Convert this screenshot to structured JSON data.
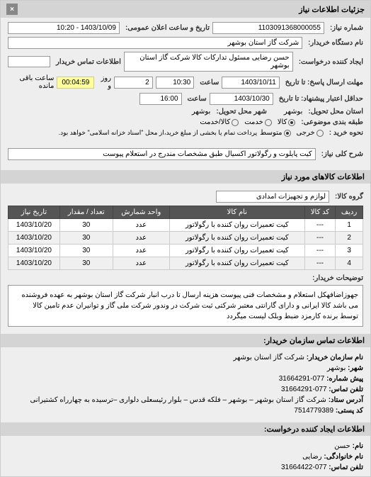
{
  "header": {
    "title": "جزئیات اطلاعات نیاز",
    "close": "×"
  },
  "request": {
    "number_label": "شماره نیاز:",
    "number": "1103091368000055",
    "datetime_label": "تاریخ و ساعت اعلان عمومی:",
    "datetime": "1403/10/09 - 10:20",
    "buyer_name_label": "نام دستگاه خریدار:",
    "buyer_name": "شرکت گاز استان بوشهر",
    "requester_label": "ایجاد کننده درخواست:",
    "requester": "حسن رضایی مسئول تدارکات کالا شرکت گاز استان بوشهر",
    "contact_label": "اطلاعات تماس خریدار",
    "deadline_send_label": "مهلت ارسال پاسخ: تا تاریخ",
    "deadline_send_date": "1403/10/11",
    "deadline_send_time_label": "ساعت",
    "deadline_send_time": "10:30",
    "remaining_label": "",
    "remaining_days": "2",
    "remaining_days_label": "روز و",
    "remaining_time": "00:04:59",
    "remaining_suffix": "ساعت باقی مانده",
    "validity_label": "حداقل اعتبار پیشنهاد: تا تاریخ",
    "validity_date": "1403/10/30",
    "validity_time_label": "ساعت",
    "validity_time": "16:00",
    "delivery_province_label": "استان محل تحویل:",
    "delivery_province": "بوشهر",
    "delivery_city_label": "شهر محل تحویل:",
    "delivery_city": "بوشهر",
    "pricing_label": "طبقه بندی موضوعی:",
    "pricing_options": [
      "کالا",
      "خدمت",
      "کالا/خدمت"
    ],
    "pricing_selected": 0,
    "purchase_type_label": "نحوه خرید :",
    "purchase_options": [
      "خرجی",
      "متوسط"
    ],
    "purchase_selected": 1,
    "purchase_note": "پرداخت تمام یا بخشی از مبلغ خرید،از محل \"اسناد خزانه اسلامی\" خواهد بود."
  },
  "main_title": {
    "label": "شرح کلی نیاز:",
    "value": "کیت پایلوت و رگولاتور اکسیال طبق مشخصات مندرج در استعلام پیوست"
  },
  "goods_section_title": "اطلاعات کالاهای مورد نیاز",
  "goods_group": {
    "label": "گروه کالا:",
    "value": "لوازم و تجهیزات امدادی"
  },
  "table": {
    "columns": [
      "ردیف",
      "کد کالا",
      "نام کالا",
      "واحد شمارش",
      "تعداد / مقدار",
      "تاریخ نیاز"
    ],
    "rows": [
      [
        "1",
        "---",
        "کیت تعمیرات روان کننده با رگولاتور",
        "عدد",
        "30",
        "1403/10/20"
      ],
      [
        "2",
        "---",
        "کیت تعمیرات روان کننده با رگولاتور",
        "عدد",
        "30",
        "1403/10/20"
      ],
      [
        "3",
        "---",
        "کیت تعمیرات روان کننده با رگولاتور",
        "عدد",
        "30",
        "1403/10/20"
      ],
      [
        "4",
        "---",
        "کیت تعمیرات روان کننده با رگولاتور",
        "عدد",
        "30",
        "1403/10/20"
      ]
    ]
  },
  "description": {
    "label": "توضیحات خریدار:",
    "text": "جهوزاضافهکل استعلام و مشخصات فنی پیوست هزینه ارسال تا درب انبار شرکت گاز استان بوشهر به عهده فروشنده می باشد کالا ایرانی و دارای گارانتی معتبر شرکتی ثبت شرکت در وندور شرکت ملی گاز و توانیران عدم تامین کالا توسط برنده کارمزد ضبط وبلک لیست میگردد"
  },
  "buyer_info_title": "اطلاعات تماس سازمان خریدار:",
  "buyer_info": {
    "org_label": "نام سازمان خریدار:",
    "org": "شرکت گاز استان بوشهر",
    "city_label": "شهر:",
    "city": "بوشهر",
    "prefix_label": "پیش شماره:",
    "prefix": "077-31664291",
    "phone_label": "تلفن تماس:",
    "phone": "077-31664291",
    "address_label": "آدرس ستاد:",
    "address": "شرکت گاز استان بوشهر – بوشهر – فلکه قدس – بلوار رئیسعلی دلواری –ترسیده به چهارراه کشتیرانی",
    "postal_label": "کد پستی:",
    "postal": "7514779389"
  },
  "creator_info_title": "اطلاعات ایجاد کننده درخواست:",
  "creator_info": {
    "name_label": "نام:",
    "name": "حسن",
    "family_label": "نام خانوادگی:",
    "family": "رضایی",
    "phone_label": "تلفن تماس:",
    "phone": "077-31664422"
  }
}
